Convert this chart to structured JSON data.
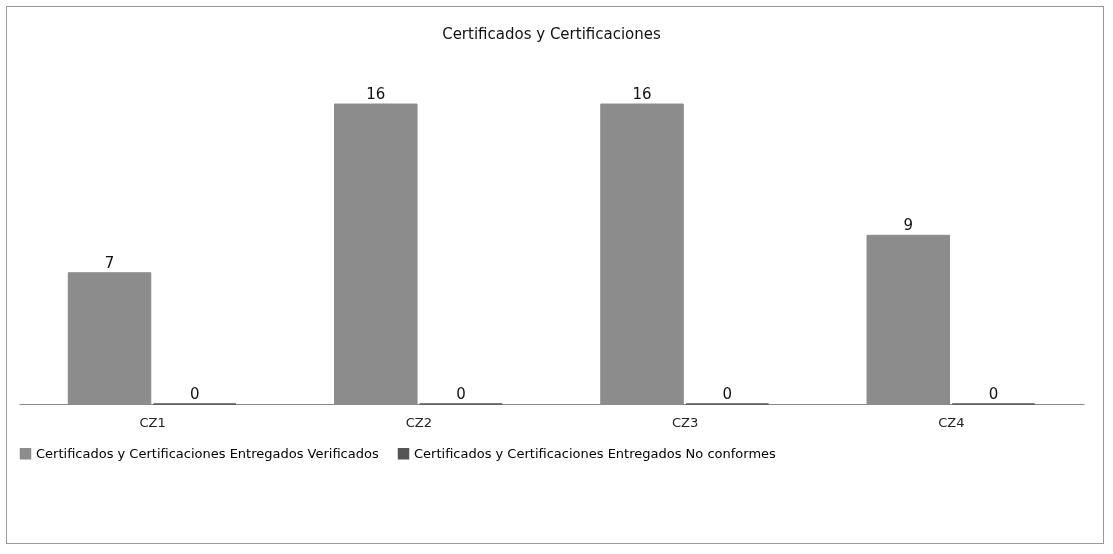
{
  "chart_data": {
    "type": "bar",
    "title": "Certificados  y Certificaciones",
    "categories": [
      "CZ1",
      "CZ2",
      "CZ3",
      "CZ4"
    ],
    "series": [
      {
        "name": "Certificados y Certificaciones Entregados Verificados",
        "color": "#8c8c8c",
        "values": [
          7,
          16,
          16,
          9
        ]
      },
      {
        "name": "Certificados y Certificaciones Entregados No conformes",
        "color": "#555555",
        "values": [
          0,
          0,
          0,
          0
        ]
      }
    ],
    "data_labels": true,
    "legend": "bottom",
    "grid": false,
    "tick_labels": "x"
  }
}
